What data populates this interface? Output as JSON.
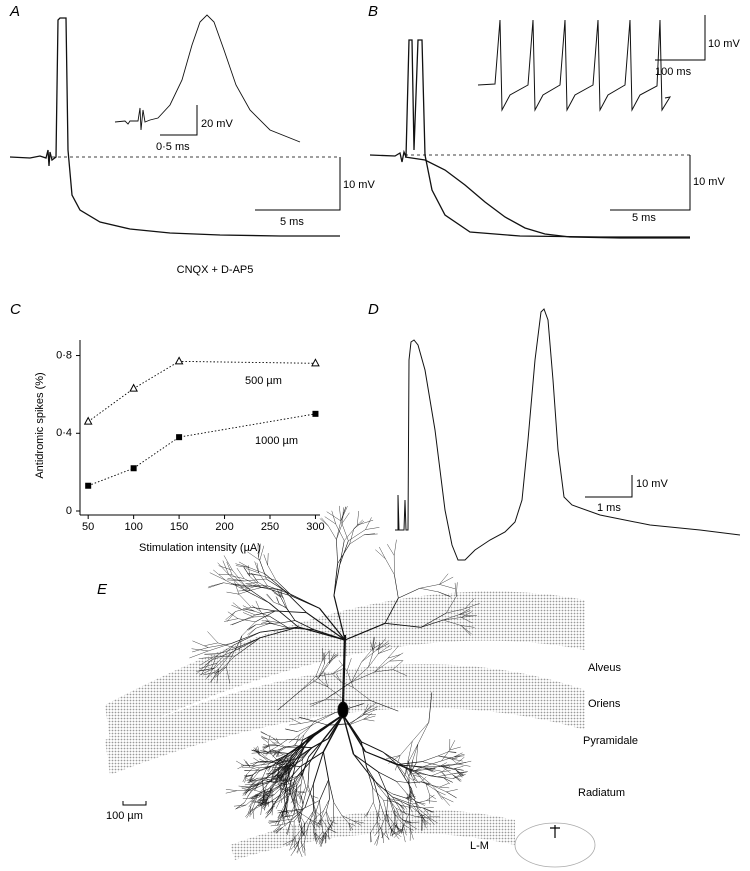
{
  "panel_a": {
    "label": "A",
    "inset_scale": [
      "20 mV",
      "0·5 ms"
    ],
    "scale": [
      "10 mV",
      "5 ms"
    ],
    "annotation": "CNQX + D-AP5"
  },
  "panel_b": {
    "label": "B",
    "inset_scale": [
      "10 mV",
      "100 ms"
    ],
    "scale": [
      "10 mV",
      "5 ms"
    ]
  },
  "panel_c": {
    "label": "C"
  },
  "chart_data": {
    "type": "line",
    "xlabel": "Stimulation intensity (µA)",
    "ylabel": "Antidromic spikes (%)",
    "x": [
      50,
      100,
      150,
      300
    ],
    "series": [
      {
        "name": "500 µm",
        "color": "#000000",
        "marker": "open-triangle",
        "values": [
          0.46,
          0.63,
          0.77,
          0.76
        ]
      },
      {
        "name": "1000 µm",
        "color": "#000000",
        "marker": "filled-square",
        "values": [
          0.13,
          0.22,
          0.38,
          0.5
        ]
      }
    ],
    "xlim": [
      41,
      305
    ],
    "ylim": [
      0,
      0.88
    ],
    "xticks": [
      50,
      100,
      150,
      200,
      250,
      300
    ],
    "yticks": [
      0,
      {
        "value": 0.4,
        "label": "0·4"
      },
      {
        "value": 0.8,
        "label": "0·8"
      }
    ],
    "line_style": "dotted"
  },
  "panel_d": {
    "label": "D",
    "scale": [
      "10 mV",
      "1 ms"
    ]
  },
  "panel_e": {
    "label": "E",
    "layers": [
      "Alveus",
      "Oriens",
      "Pyramidale",
      "Radiatum"
    ],
    "scale": "100 µm",
    "lm": "L-M"
  }
}
